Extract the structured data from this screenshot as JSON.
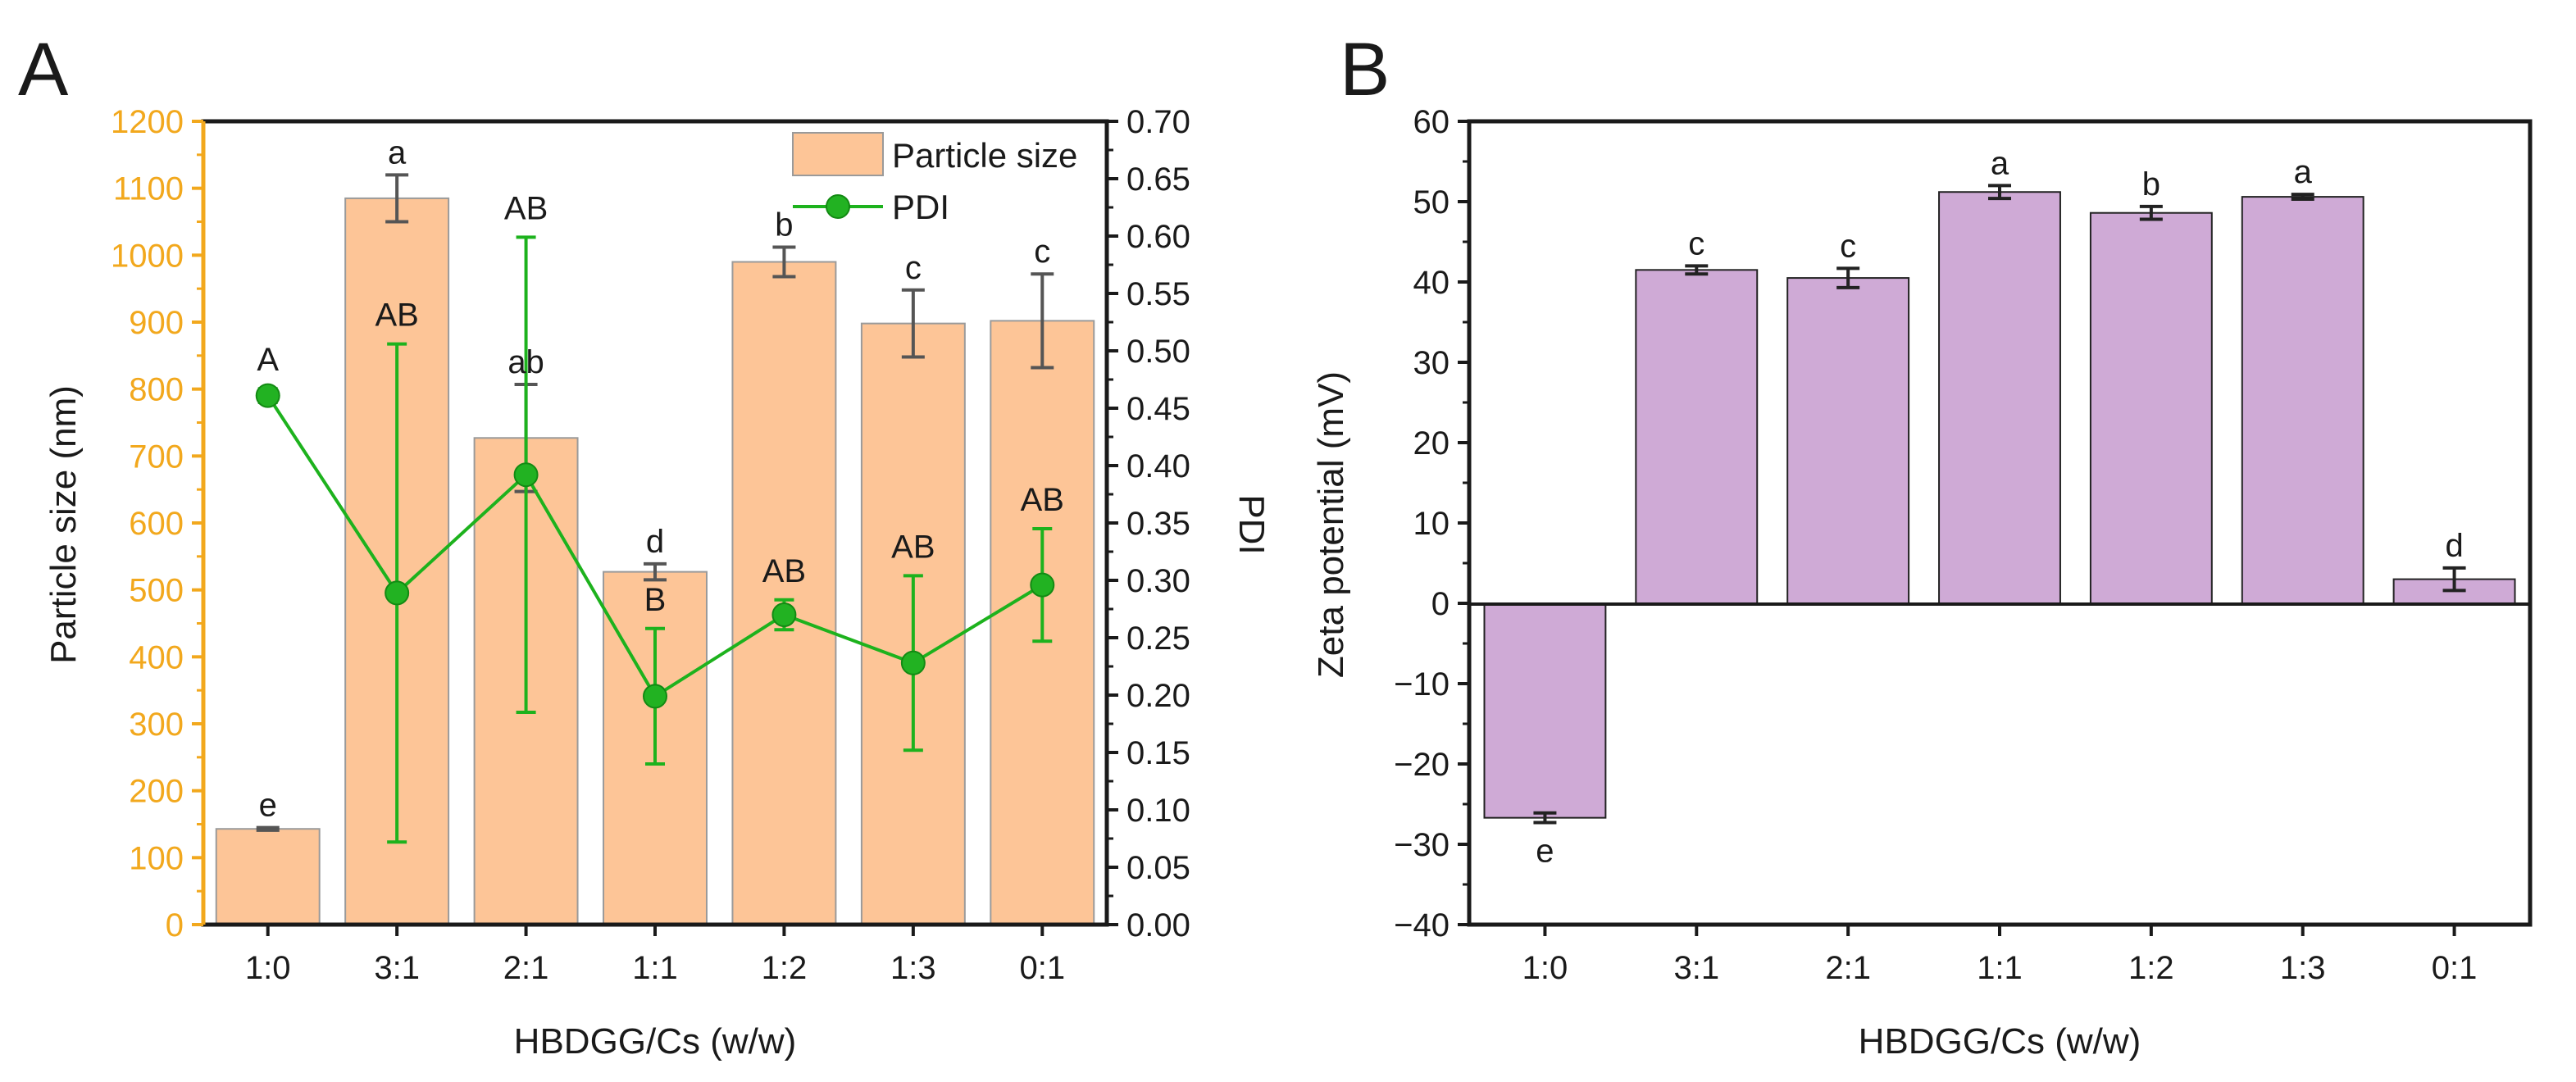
{
  "chart_data": [
    {
      "panel_label": "A",
      "type": "bar+line",
      "xlabel": "HBDGG/Cs (w/w)",
      "ylabel": "Particle size (nm)",
      "y2label": "PDI",
      "categories": [
        "1:0",
        "3:1",
        "2:1",
        "1:1",
        "1:2",
        "1:3",
        "0:1"
      ],
      "ylim": [
        0,
        1200
      ],
      "y_ticks": [
        "0",
        "100",
        "200",
        "300",
        "400",
        "500",
        "600",
        "700",
        "800",
        "900",
        "1000",
        "1100",
        "1200"
      ],
      "y2lim": [
        0,
        0.7
      ],
      "y2_ticks": [
        "0.00",
        "0.05",
        "0.10",
        "0.15",
        "0.20",
        "0.25",
        "0.30",
        "0.35",
        "0.40",
        "0.45",
        "0.50",
        "0.55",
        "0.60",
        "0.65",
        "0.70"
      ],
      "series": [
        {
          "name": "Particle size",
          "kind": "bar",
          "axis": "left",
          "values": [
            143,
            1085,
            727,
            527,
            990,
            898,
            902
          ],
          "errors": [
            2,
            35,
            80,
            12,
            22,
            50,
            70
          ],
          "labels": [
            "e",
            "a",
            "ab",
            "d",
            "b",
            "c",
            "c"
          ]
        },
        {
          "name": "PDI",
          "kind": "line",
          "axis": "right",
          "values": [
            0.461,
            0.289,
            0.392,
            0.199,
            0.27,
            0.228,
            0.296
          ],
          "errors": [
            0.006,
            0.217,
            0.207,
            0.059,
            0.013,
            0.076,
            0.049
          ],
          "labels": [
            "A",
            "AB",
            "AB",
            "B",
            "AB",
            "AB",
            "AB"
          ]
        }
      ],
      "legend": [
        "Particle size",
        "PDI"
      ],
      "colors": {
        "bar": "#fdc597",
        "bar_edge": "#9a9a9a",
        "line": "#1db21d",
        "marker": "#22b222",
        "left_axis": "#f2a81d",
        "error": "#555555"
      }
    },
    {
      "panel_label": "B",
      "type": "bar",
      "xlabel": "HBDGG/Cs (w/w)",
      "ylabel": "Zeta potential (mV)",
      "categories": [
        "1:0",
        "3:1",
        "2:1",
        "1:1",
        "1:2",
        "1:3",
        "0:1"
      ],
      "ylim": [
        -40,
        60
      ],
      "y_ticks": [
        "−40",
        "−30",
        "−20",
        "−10",
        "0",
        "10",
        "20",
        "30",
        "40",
        "50",
        "60"
      ],
      "series": [
        {
          "name": "Zeta potential",
          "values": [
            -26.7,
            41.5,
            40.5,
            51.2,
            48.6,
            50.6,
            3.0
          ],
          "errors": [
            0.6,
            0.5,
            1.2,
            0.8,
            0.8,
            0.3,
            1.4
          ],
          "labels": [
            "e",
            "c",
            "c",
            "a",
            "b",
            "a",
            "d"
          ]
        }
      ],
      "colors": {
        "bar": "#cfaad6",
        "bar_edge": "#222222",
        "error": "#222222"
      }
    }
  ]
}
